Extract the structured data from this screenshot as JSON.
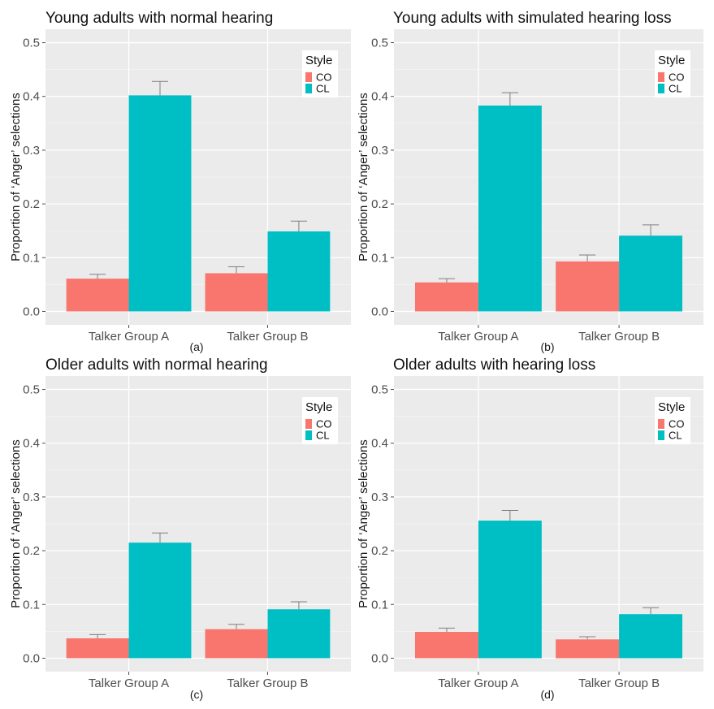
{
  "chart_data": [
    {
      "type": "bar",
      "title": "Young adults with normal hearing",
      "panel_label": "(a)",
      "ylabel": "Proportion of ‘Anger’ selections",
      "xlabel": "",
      "ylim": [
        0,
        0.5
      ],
      "yticks": [
        "0.0",
        "0.1",
        "0.2",
        "0.3",
        "0.4",
        "0.5"
      ],
      "categories": [
        "Talker Group A",
        "Talker Group B"
      ],
      "legend_title": "Style",
      "legend_position": "top-right",
      "series": [
        {
          "name": "CO",
          "color": "#F8766D",
          "values": [
            0.061,
            0.071
          ],
          "err_upper": [
            0.069,
            0.083
          ]
        },
        {
          "name": "CL",
          "color": "#00BFC4",
          "values": [
            0.402,
            0.149
          ],
          "err_upper": [
            0.428,
            0.168
          ]
        }
      ]
    },
    {
      "type": "bar",
      "title": "Young adults with simulated hearing loss",
      "panel_label": "(b)",
      "ylabel": "Proportion of ‘Anger’ selections",
      "xlabel": "",
      "ylim": [
        0,
        0.5
      ],
      "yticks": [
        "0.0",
        "0.1",
        "0.2",
        "0.3",
        "0.4",
        "0.5"
      ],
      "categories": [
        "Talker Group A",
        "Talker Group B"
      ],
      "legend_title": "Style",
      "legend_position": "top-right",
      "series": [
        {
          "name": "CO",
          "color": "#F8766D",
          "values": [
            0.054,
            0.093
          ],
          "err_upper": [
            0.061,
            0.105
          ]
        },
        {
          "name": "CL",
          "color": "#00BFC4",
          "values": [
            0.383,
            0.141
          ],
          "err_upper": [
            0.407,
            0.161
          ]
        }
      ]
    },
    {
      "type": "bar",
      "title": "Older adults with normal hearing",
      "panel_label": "(c)",
      "ylabel": "Proportion of ‘Anger’ selections",
      "xlabel": "",
      "ylim": [
        0,
        0.5
      ],
      "yticks": [
        "0.0",
        "0.1",
        "0.2",
        "0.3",
        "0.4",
        "0.5"
      ],
      "categories": [
        "Talker Group A",
        "Talker Group B"
      ],
      "legend_title": "Style",
      "legend_position": "top-right",
      "series": [
        {
          "name": "CO",
          "color": "#F8766D",
          "values": [
            0.037,
            0.054
          ],
          "err_upper": [
            0.044,
            0.063
          ]
        },
        {
          "name": "CL",
          "color": "#00BFC4",
          "values": [
            0.215,
            0.091
          ],
          "err_upper": [
            0.233,
            0.105
          ]
        }
      ]
    },
    {
      "type": "bar",
      "title": "Older adults with hearing loss",
      "panel_label": "(d)",
      "ylabel": "Proportion of ‘Anger’ selections",
      "xlabel": "",
      "ylim": [
        0,
        0.5
      ],
      "yticks": [
        "0.0",
        "0.1",
        "0.2",
        "0.3",
        "0.4",
        "0.5"
      ],
      "categories": [
        "Talker Group A",
        "Talker Group B"
      ],
      "legend_title": "Style",
      "legend_position": "top-right",
      "series": [
        {
          "name": "CO",
          "color": "#F8766D",
          "values": [
            0.049,
            0.035
          ],
          "err_upper": [
            0.056,
            0.04
          ]
        },
        {
          "name": "CL",
          "color": "#00BFC4",
          "values": [
            0.256,
            0.082
          ],
          "err_upper": [
            0.275,
            0.094
          ]
        }
      ]
    }
  ]
}
